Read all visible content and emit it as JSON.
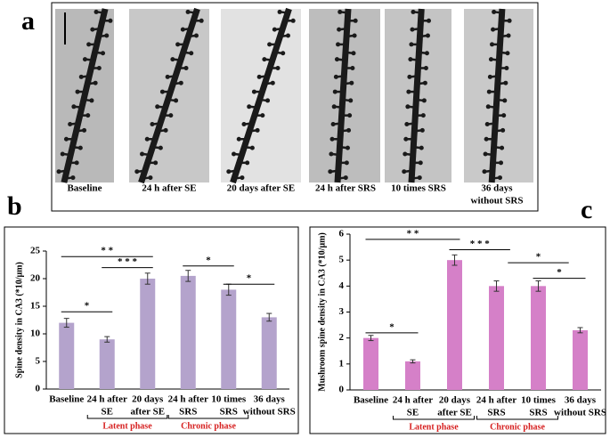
{
  "panel_labels": {
    "a": "a",
    "b": "b",
    "c": "c"
  },
  "image_captions": [
    [
      "Baseline"
    ],
    [
      "24 h after SE"
    ],
    [
      "20 days after SE"
    ],
    [
      "24 h after SRS"
    ],
    [
      "10 times SRS"
    ],
    [
      "36 days",
      "without SRS"
    ]
  ],
  "chart_data": [
    {
      "type": "bar",
      "ylabel": "Spine density in CA3 (*10/μm)",
      "categories": [
        [
          "Baseline"
        ],
        [
          "24 h after",
          "SE"
        ],
        [
          "20 days",
          "after SE"
        ],
        [
          "24 h after",
          "SRS"
        ],
        [
          "10 times",
          "SRS"
        ],
        [
          "36 days",
          "without SRS"
        ]
      ],
      "values": [
        12,
        9,
        20,
        20.5,
        18,
        13
      ],
      "errors": [
        0.8,
        0.5,
        1,
        1,
        1,
        0.7
      ],
      "color": "#b4a3cc",
      "ylim": [
        0,
        25
      ],
      "yticks": [
        0,
        5,
        10,
        15,
        20,
        25
      ],
      "significance": [
        "* *",
        "* * *",
        "*",
        "*",
        "*"
      ],
      "phases": [
        "Latent phase",
        "Chronic phase"
      ]
    },
    {
      "type": "bar",
      "ylabel": "Mushroom spine density in CA3 (*10/μm)",
      "categories": [
        [
          "Baseline"
        ],
        [
          "24 h after",
          "SE"
        ],
        [
          "20 days",
          "after SE"
        ],
        [
          "24 h after",
          "SRS"
        ],
        [
          "10 times",
          "SRS"
        ],
        [
          "36 days",
          "without SRS"
        ]
      ],
      "values": [
        2,
        1.1,
        5,
        4,
        4,
        2.3
      ],
      "errors": [
        0.1,
        0.06,
        0.2,
        0.2,
        0.2,
        0.1
      ],
      "color": "#d580c8",
      "ylim": [
        0,
        6
      ],
      "yticks": [
        0,
        1,
        2,
        3,
        4,
        5,
        6
      ],
      "significance": [
        "* *",
        "* * *",
        "*",
        "*",
        "*"
      ],
      "phases": [
        "Latent phase",
        "Chronic phase"
      ]
    }
  ]
}
